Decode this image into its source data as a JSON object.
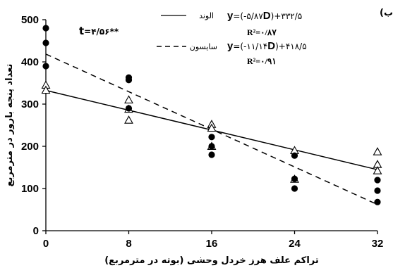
{
  "panel_label": "(ب",
  "chart_data": {
    "type": "scatter",
    "xlabel": "تراکم علف هرز خردل وحشی (بوته در مترمربع)",
    "ylabel": "تعداد پنجه بارور در مترمربع",
    "x_ticks": [
      "0",
      "8",
      "16",
      "24",
      "32"
    ],
    "y_ticks": [
      "0",
      "100",
      "200",
      "300",
      "400",
      "500"
    ],
    "xlim": [
      0,
      32
    ],
    "ylim": [
      0,
      500
    ],
    "t_stat": {
      "prefix": "t",
      "value": "=۴/۵۶**"
    },
    "series": [
      {
        "name": "الوند",
        "marker": "filled-circle",
        "line_style": "solid",
        "color": "#000000",
        "equation_prefix": "y",
        "equation_mid": "=(-۵/۸۷",
        "equation_var": "D",
        "equation_suffix": ")+۳۳۲/۵",
        "r2": "R²=۰/۸۷",
        "fit": {
          "slope": -5.87,
          "intercept": 332.5
        },
        "x": [
          0,
          0,
          0,
          8,
          8,
          8,
          16,
          16,
          16,
          24,
          24,
          24,
          32,
          32,
          32
        ],
        "y": [
          480,
          445,
          390,
          363,
          357,
          290,
          222,
          200,
          180,
          178,
          123,
          100,
          120,
          95,
          68
        ]
      },
      {
        "name": "سایسون",
        "marker": "open-triangle",
        "line_style": "dashed",
        "color": "#000000",
        "equation_prefix": "y",
        "equation_mid": "=(-۱۱/۱۴",
        "equation_var": "D",
        "equation_suffix": ")+۴۱۸/۵",
        "r2": "R²=۰/۹۱",
        "fit": {
          "slope": -11.14,
          "intercept": 418.5
        },
        "x": [
          0,
          0,
          8,
          8,
          8,
          16,
          16,
          16,
          24,
          24,
          32,
          32,
          32
        ],
        "y": [
          345,
          333,
          310,
          288,
          262,
          252,
          243,
          200,
          190,
          122,
          187,
          157,
          142
        ]
      }
    ]
  }
}
